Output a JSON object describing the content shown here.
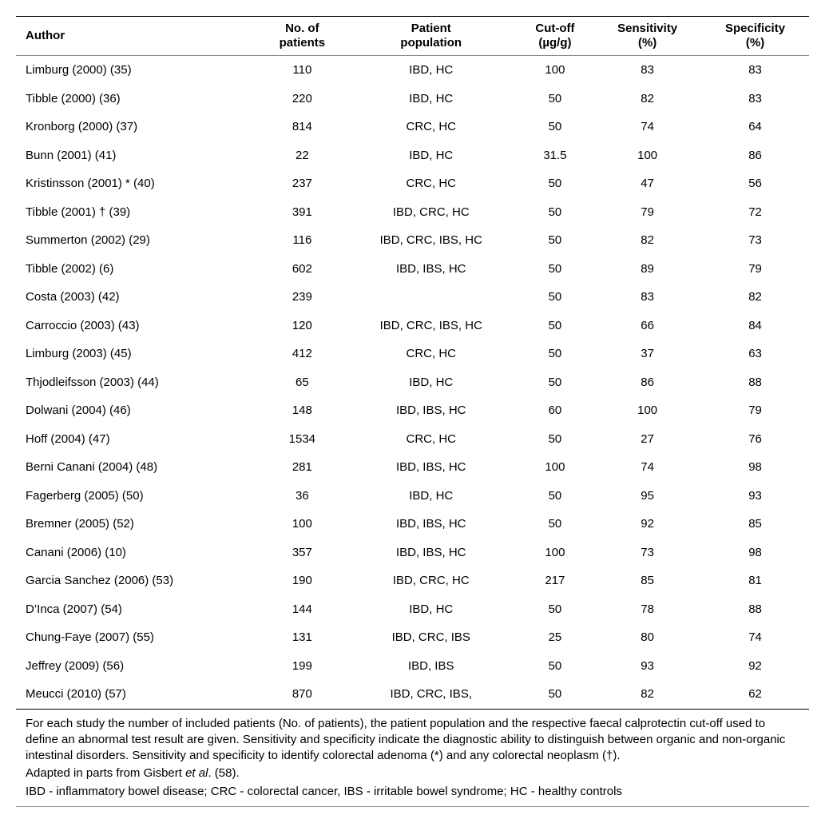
{
  "headers": {
    "author": "Author",
    "patients": "No. of\npatients",
    "population": "Patient\npopulation",
    "cutoff": "Cut-off\n(µg/g)",
    "sensitivity": "Sensitivity\n(%)",
    "specificity": "Specificity\n(%)"
  },
  "rows": [
    {
      "author": "Limburg (2000) (35)",
      "patients": "110",
      "population": "IBD, HC",
      "cutoff": "100",
      "sens": "83",
      "spec": "83"
    },
    {
      "author": "Tibble (2000) (36)",
      "patients": "220",
      "population": "IBD, HC",
      "cutoff": "50",
      "sens": "82",
      "spec": "83"
    },
    {
      "author": "Kronborg (2000) (37)",
      "patients": "814",
      "population": "CRC, HC",
      "cutoff": "50",
      "sens": "74",
      "spec": "64"
    },
    {
      "author": "Bunn (2001) (41)",
      "patients": "22",
      "population": "IBD, HC",
      "cutoff": "31.5",
      "sens": "100",
      "spec": "86"
    },
    {
      "author": "Kristinsson (2001) * (40)",
      "patients": "237",
      "population": "CRC, HC",
      "cutoff": "50",
      "sens": "47",
      "spec": "56"
    },
    {
      "author": "Tibble (2001) † (39)",
      "patients": "391",
      "population": "IBD, CRC, HC",
      "cutoff": "50",
      "sens": "79",
      "spec": "72"
    },
    {
      "author": "Summerton (2002) (29)",
      "patients": "116",
      "population": "IBD, CRC, IBS, HC",
      "cutoff": "50",
      "sens": "82",
      "spec": "73"
    },
    {
      "author": "Tibble (2002) (6)",
      "patients": "602",
      "population": "IBD, IBS, HC",
      "cutoff": "50",
      "sens": "89",
      "spec": "79"
    },
    {
      "author": "Costa (2003) (42)",
      "patients": "239",
      "population": "",
      "cutoff": "50",
      "sens": "83",
      "spec": "82"
    },
    {
      "author": "Carroccio (2003) (43)",
      "patients": "120",
      "population": "IBD, CRC, IBS, HC",
      "cutoff": "50",
      "sens": "66",
      "spec": "84"
    },
    {
      "author": "Limburg (2003) (45)",
      "patients": "412",
      "population": "CRC, HC",
      "cutoff": "50",
      "sens": "37",
      "spec": "63"
    },
    {
      "author": "Thjodleifsson (2003) (44)",
      "patients": "65",
      "population": "IBD, HC",
      "cutoff": "50",
      "sens": "86",
      "spec": "88"
    },
    {
      "author": "Dolwani (2004) (46)",
      "patients": "148",
      "population": "IBD, IBS, HC",
      "cutoff": "60",
      "sens": "100",
      "spec": "79"
    },
    {
      "author": "Hoff (2004) (47)",
      "patients": "1534",
      "population": "CRC, HC",
      "cutoff": "50",
      "sens": "27",
      "spec": "76"
    },
    {
      "author": "Berni Canani (2004) (48)",
      "patients": "281",
      "population": "IBD, IBS, HC",
      "cutoff": "100",
      "sens": "74",
      "spec": "98"
    },
    {
      "author": "Fagerberg (2005) (50)",
      "patients": "36",
      "population": "IBD, HC",
      "cutoff": "50",
      "sens": "95",
      "spec": "93"
    },
    {
      "author": "Bremner (2005) (52)",
      "patients": "100",
      "population": "IBD, IBS, HC",
      "cutoff": "50",
      "sens": "92",
      "spec": "85"
    },
    {
      "author": "Canani (2006) (10)",
      "patients": "357",
      "population": "IBD, IBS, HC",
      "cutoff": "100",
      "sens": "73",
      "spec": "98"
    },
    {
      "author": "Garcia Sanchez (2006) (53)",
      "patients": "190",
      "population": "IBD, CRC, HC",
      "cutoff": "217",
      "sens": "85",
      "spec": "81"
    },
    {
      "author": "D’Inca (2007) (54)",
      "patients": "144",
      "population": "IBD, HC",
      "cutoff": "50",
      "sens": "78",
      "spec": "88"
    },
    {
      "author": "Chung-Faye (2007) (55)",
      "patients": "131",
      "population": "IBD, CRC, IBS",
      "cutoff": "25",
      "sens": "80",
      "spec": "74"
    },
    {
      "author": "Jeffrey (2009) (56)",
      "patients": "199",
      "population": "IBD, IBS",
      "cutoff": "50",
      "sens": "93",
      "spec": "92"
    },
    {
      "author": "Meucci (2010) (57)",
      "patients": "870",
      "population": "IBD, CRC, IBS,",
      "cutoff": "50",
      "sens": "82",
      "spec": "62"
    }
  ],
  "footnote": {
    "p1": "For each study the number of included patients (No. of patients), the patient population and the respective faecal calprotectin cut-off used to define an abnormal test result are given. Sensitivity and specificity indicate the diagnostic ability to distinguish between organic and non-organic intestinal disorders. Sensitivity and specificity to identify colorectal adenoma (*) and any colorectal neoplasm (†).",
    "p2a": "Adapted in parts from Gisbert ",
    "p2b": "et al",
    "p2c": ". (58).",
    "p3": "IBD - inflammatory bowel disease; CRC - colorectal cancer, IBS - irritable bowel syndrome; HC - healthy controls"
  }
}
